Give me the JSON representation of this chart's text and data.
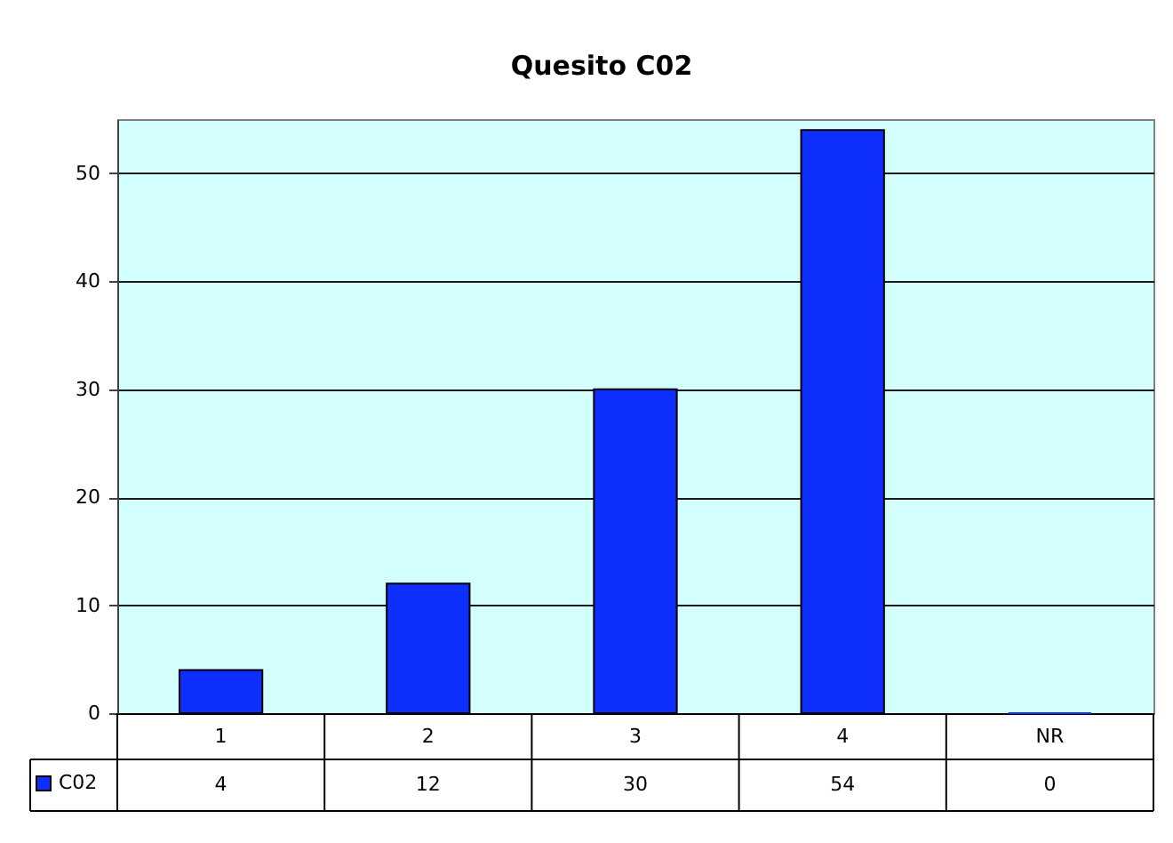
{
  "chart_data": {
    "type": "bar",
    "title": "Quesito C02",
    "categories": [
      "1",
      "2",
      "3",
      "4",
      "NR"
    ],
    "series": [
      {
        "name": "C02",
        "color": "#0f2fff",
        "values": [
          4,
          12,
          30,
          54,
          0
        ]
      }
    ],
    "ylim": [
      0,
      55
    ],
    "yticks": [
      0,
      10,
      20,
      30,
      40,
      50
    ],
    "grid": "y",
    "legend": "bottom left",
    "data_labels": true
  }
}
